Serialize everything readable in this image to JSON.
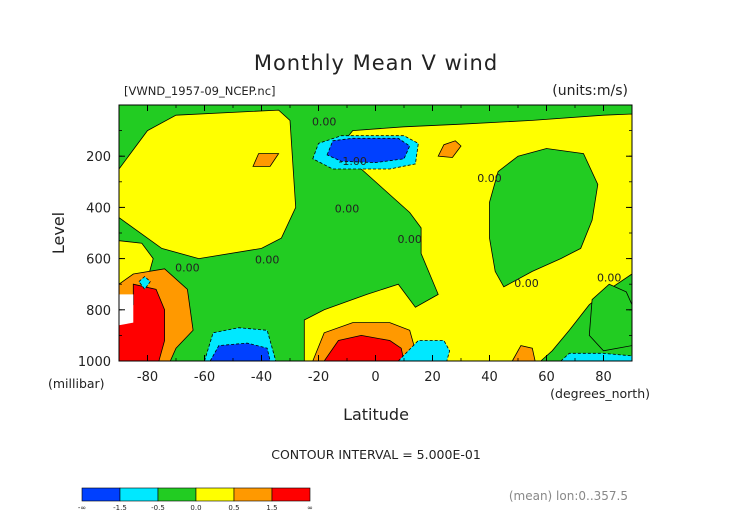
{
  "chart_data": {
    "type": "contour",
    "title": "Monthly Mean V wind",
    "file_label": "[VWND_1957-09_NCEP.nc]",
    "units_label": "(units:m/s)",
    "xlabel": "Latitude",
    "x_units": "(degrees_north)",
    "ylabel": "Level",
    "y_units": "(millibar)",
    "xlim": [
      -90,
      90
    ],
    "ylim": [
      1000,
      0
    ],
    "x_ticks": [
      -80,
      -60,
      -40,
      -20,
      0,
      20,
      40,
      60,
      80
    ],
    "y_ticks": [
      200,
      400,
      600,
      800,
      1000
    ],
    "contour_interval_text": "CONTOUR INTERVAL = 5.000E-01",
    "footer_text": "(mean) lon:0..357.5",
    "contour_labels": [
      {
        "text": "0.00",
        "x": -18,
        "y": 80
      },
      {
        "text": "-1.00",
        "x": -8,
        "y": 235
      },
      {
        "text": "0.00",
        "x": -10,
        "y": 420
      },
      {
        "text": "0.00",
        "x": 40,
        "y": 300
      },
      {
        "text": "0.00",
        "x": 12,
        "y": 540
      },
      {
        "text": "0.00",
        "x": -66,
        "y": 650
      },
      {
        "text": "0.00",
        "x": -38,
        "y": 620
      },
      {
        "text": "0.00",
        "x": 53,
        "y": 710
      },
      {
        "text": "0.00",
        "x": 82,
        "y": 690
      }
    ],
    "colorbar": {
      "colors": [
        "#0040ff",
        "#00e8ff",
        "#22cc22",
        "#ffff00",
        "#ff9900",
        "#ff0000"
      ],
      "labels": [
        "-∞",
        "-1.5",
        "-0.5",
        "0.0",
        "0.5",
        "1.5",
        "∞"
      ]
    },
    "regions": [
      {
        "level": "green",
        "color": "#22cc22",
        "points": [
          [
            -90,
            0
          ],
          [
            90,
            0
          ],
          [
            90,
            1000
          ],
          [
            -90,
            1000
          ]
        ]
      },
      {
        "level": "yellow",
        "color": "#ffff00",
        "points": [
          [
            -70,
            40
          ],
          [
            -34,
            20
          ],
          [
            -30,
            60
          ],
          [
            -28,
            400
          ],
          [
            -33,
            520
          ],
          [
            -40,
            560
          ],
          [
            -62,
            600
          ],
          [
            -75,
            560
          ],
          [
            -90,
            440
          ],
          [
            -90,
            250
          ],
          [
            -80,
            100
          ]
        ]
      },
      {
        "level": "yellow",
        "color": "#ffff00",
        "points": [
          [
            -13,
            170
          ],
          [
            -8,
            100
          ],
          [
            10,
            85
          ],
          [
            30,
            75
          ],
          [
            55,
            60
          ],
          [
            80,
            40
          ],
          [
            90,
            35
          ],
          [
            90,
            660
          ],
          [
            82,
            720
          ],
          [
            75,
            780
          ],
          [
            68,
            880
          ],
          [
            62,
            960
          ],
          [
            58,
            1000
          ],
          [
            -25,
            1000
          ],
          [
            -25,
            840
          ],
          [
            -18,
            800
          ],
          [
            -3,
            740
          ],
          [
            8,
            700
          ],
          [
            14,
            790
          ],
          [
            22,
            740
          ],
          [
            16,
            580
          ],
          [
            16,
            480
          ],
          [
            12,
            420
          ]
        ]
      },
      {
        "level": "green",
        "color": "#22cc22",
        "points": [
          [
            43,
            260
          ],
          [
            50,
            200
          ],
          [
            60,
            170
          ],
          [
            73,
            190
          ],
          [
            78,
            310
          ],
          [
            76,
            450
          ],
          [
            72,
            560
          ],
          [
            65,
            600
          ],
          [
            55,
            650
          ],
          [
            45,
            710
          ],
          [
            42,
            650
          ],
          [
            40,
            520
          ],
          [
            40,
            380
          ]
        ]
      },
      {
        "level": "green",
        "color": "#22cc22",
        "points": [
          [
            76,
            760
          ],
          [
            82,
            700
          ],
          [
            88,
            730
          ],
          [
            90,
            780
          ],
          [
            90,
            940
          ],
          [
            80,
            960
          ],
          [
            75,
            900
          ]
        ]
      },
      {
        "level": "cyan",
        "color": "#00e8ff",
        "points": [
          [
            -22,
            210
          ],
          [
            -20,
            150
          ],
          [
            -12,
            120
          ],
          [
            10,
            120
          ],
          [
            15,
            150
          ],
          [
            14,
            230
          ],
          [
            5,
            250
          ],
          [
            -15,
            250
          ]
        ]
      },
      {
        "level": "blue",
        "color": "#0040ff",
        "points": [
          [
            -17,
            195
          ],
          [
            -15,
            140
          ],
          [
            -8,
            130
          ],
          [
            8,
            130
          ],
          [
            12,
            160
          ],
          [
            10,
            210
          ],
          [
            0,
            225
          ],
          [
            -12,
            220
          ]
        ]
      },
      {
        "level": "yellow",
        "color": "#ffff00",
        "points": [
          [
            -90,
            530
          ],
          [
            -82,
            540
          ],
          [
            -78,
            600
          ],
          [
            -81,
            720
          ],
          [
            -88,
            740
          ],
          [
            -90,
            740
          ]
        ]
      },
      {
        "level": "orange",
        "color": "#ff9900",
        "points": [
          [
            -85,
            660
          ],
          [
            -74,
            640
          ],
          [
            -66,
            720
          ],
          [
            -64,
            880
          ],
          [
            -70,
            950
          ],
          [
            -72,
            1000
          ],
          [
            -90,
            1000
          ],
          [
            -90,
            700
          ]
        ]
      },
      {
        "level": "red",
        "color": "#ff0000",
        "points": [
          [
            -85,
            700
          ],
          [
            -77,
            720
          ],
          [
            -74,
            800
          ],
          [
            -74,
            920
          ],
          [
            -76,
            1000
          ],
          [
            -90,
            1000
          ],
          [
            -90,
            830
          ],
          [
            -85,
            780
          ]
        ]
      },
      {
        "level": "cyan",
        "color": "#00e8ff",
        "points": [
          [
            -60,
            1000
          ],
          [
            -57,
            890
          ],
          [
            -48,
            870
          ],
          [
            -38,
            880
          ],
          [
            -35,
            1000
          ]
        ]
      },
      {
        "level": "blue",
        "color": "#0040ff",
        "points": [
          [
            -58,
            1000
          ],
          [
            -55,
            940
          ],
          [
            -45,
            930
          ],
          [
            -38,
            950
          ],
          [
            -37,
            1000
          ]
        ]
      },
      {
        "level": "orange",
        "color": "#ff9900",
        "points": [
          [
            -22,
            1000
          ],
          [
            -18,
            890
          ],
          [
            -8,
            850
          ],
          [
            5,
            850
          ],
          [
            12,
            880
          ],
          [
            15,
            1000
          ]
        ]
      },
      {
        "level": "red",
        "color": "#ff0000",
        "points": [
          [
            -18,
            1000
          ],
          [
            -13,
            920
          ],
          [
            -5,
            900
          ],
          [
            5,
            920
          ],
          [
            9,
            950
          ],
          [
            10,
            1000
          ]
        ]
      },
      {
        "level": "cyan",
        "color": "#00e8ff",
        "points": [
          [
            8,
            1000
          ],
          [
            15,
            920
          ],
          [
            24,
            920
          ],
          [
            26,
            960
          ],
          [
            25,
            1000
          ]
        ]
      },
      {
        "level": "orange",
        "color": "#ff9900",
        "points": [
          [
            48,
            1000
          ],
          [
            51,
            940
          ],
          [
            55,
            950
          ],
          [
            56,
            1000
          ]
        ]
      },
      {
        "level": "cyan",
        "color": "#00e8ff",
        "points": [
          [
            65,
            1000
          ],
          [
            68,
            970
          ],
          [
            80,
            970
          ],
          [
            90,
            980
          ],
          [
            90,
            1000
          ]
        ]
      },
      {
        "level": "orange",
        "color": "#ff9900",
        "points": [
          [
            -43,
            240
          ],
          [
            -41,
            190
          ],
          [
            -34,
            190
          ],
          [
            -37,
            240
          ]
        ]
      },
      {
        "level": "orange",
        "color": "#ff9900",
        "points": [
          [
            22,
            200
          ],
          [
            24,
            155
          ],
          [
            28,
            140
          ],
          [
            30,
            160
          ],
          [
            27,
            205
          ]
        ]
      },
      {
        "level": "cyan",
        "color": "#00e8ff",
        "points": [
          [
            -83,
            690
          ],
          [
            -81,
            670
          ],
          [
            -79,
            690
          ],
          [
            -81,
            720
          ]
        ]
      },
      {
        "level": "white",
        "color": "#ffffff",
        "points": [
          [
            -90,
            740
          ],
          [
            -85,
            740
          ],
          [
            -85,
            850
          ],
          [
            -90,
            860
          ]
        ]
      }
    ]
  }
}
